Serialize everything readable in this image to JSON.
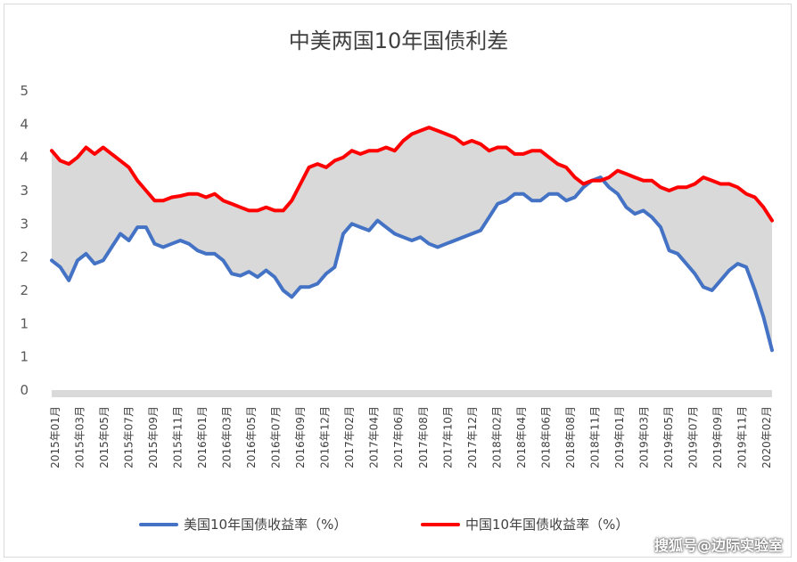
{
  "chart_data": {
    "type": "area",
    "title": "中美两国10年国债利差",
    "y_tick_labels": [
      "0",
      "1",
      "1",
      "2",
      "2",
      "3",
      "3",
      "4",
      "4",
      "5"
    ],
    "ylim": [
      0,
      4.5
    ],
    "x_tick_labels": [
      "2015年01月",
      "2015年03月",
      "2015年05月",
      "2015年07月",
      "2015年09月",
      "2015年11月",
      "2016年01月",
      "2016年03月",
      "2016年05月",
      "2016年07月",
      "2016年09月",
      "2016年12月",
      "2017年02月",
      "2017年04月",
      "2017年06月",
      "2017年08月",
      "2017年10月",
      "2017年12月",
      "2018年02月",
      "2018年04月",
      "2018年06月",
      "2018年08月",
      "2018年11月",
      "2019年01月",
      "2019年03月",
      "2019年05月",
      "2019年07月",
      "2019年09月",
      "2019年11月",
      "2020年02月"
    ],
    "grid": false,
    "legend_position": "bottom",
    "series": [
      {
        "name": "美国10年国债收益率（%）",
        "color": "#4472c4",
        "values": [
          1.95,
          1.85,
          1.65,
          1.95,
          2.05,
          1.9,
          1.95,
          2.15,
          2.35,
          2.25,
          2.45,
          2.45,
          2.2,
          2.15,
          2.2,
          2.25,
          2.2,
          2.1,
          2.05,
          2.05,
          1.95,
          1.75,
          1.72,
          1.78,
          1.7,
          1.8,
          1.7,
          1.5,
          1.4,
          1.55,
          1.55,
          1.6,
          1.75,
          1.85,
          2.35,
          2.5,
          2.45,
          2.4,
          2.55,
          2.45,
          2.35,
          2.3,
          2.25,
          2.3,
          2.2,
          2.15,
          2.2,
          2.25,
          2.3,
          2.35,
          2.4,
          2.6,
          2.8,
          2.85,
          2.95,
          2.95,
          2.85,
          2.85,
          2.95,
          2.95,
          2.85,
          2.9,
          3.05,
          3.15,
          3.2,
          3.05,
          2.95,
          2.75,
          2.65,
          2.7,
          2.6,
          2.45,
          2.1,
          2.05,
          1.9,
          1.75,
          1.55,
          1.5,
          1.65,
          1.8,
          1.9,
          1.85,
          1.5,
          1.1,
          0.6
        ]
      },
      {
        "name": "中国10年国债收益率（%）",
        "color": "#ff0000",
        "values": [
          3.6,
          3.45,
          3.4,
          3.5,
          3.65,
          3.55,
          3.65,
          3.55,
          3.45,
          3.35,
          3.15,
          3.0,
          2.85,
          2.85,
          2.9,
          2.92,
          2.95,
          2.95,
          2.9,
          2.95,
          2.85,
          2.8,
          2.75,
          2.7,
          2.7,
          2.75,
          2.7,
          2.7,
          2.85,
          3.1,
          3.35,
          3.4,
          3.35,
          3.45,
          3.5,
          3.6,
          3.55,
          3.6,
          3.6,
          3.65,
          3.6,
          3.75,
          3.85,
          3.9,
          3.95,
          3.9,
          3.85,
          3.8,
          3.7,
          3.75,
          3.7,
          3.6,
          3.65,
          3.65,
          3.55,
          3.55,
          3.6,
          3.6,
          3.5,
          3.4,
          3.35,
          3.2,
          3.1,
          3.15,
          3.15,
          3.2,
          3.3,
          3.25,
          3.2,
          3.15,
          3.15,
          3.05,
          3.0,
          3.05,
          3.05,
          3.1,
          3.2,
          3.15,
          3.1,
          3.1,
          3.05,
          2.95,
          2.9,
          2.75,
          2.55
        ]
      }
    ]
  },
  "legend": {
    "us_label": "美国10年国债收益率（%）",
    "cn_label": "中国10年国债收益率（%）"
  },
  "watermark": "搜狐号@边际实验室"
}
